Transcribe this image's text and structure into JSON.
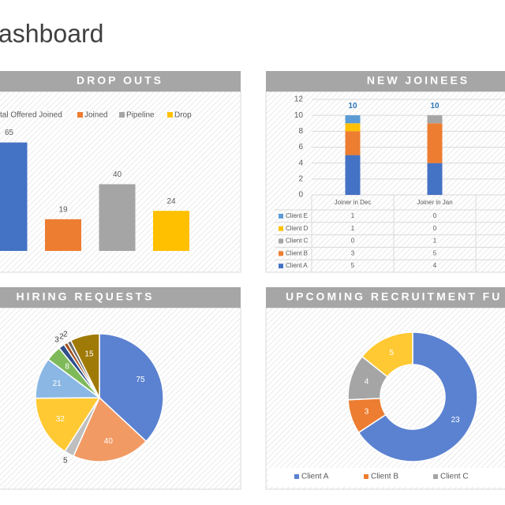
{
  "title": "ashboard",
  "chart_data": [
    {
      "type": "bar",
      "title": "DROP OUTS",
      "ylim": [
        0,
        70
      ],
      "series": [
        {
          "name": "tal Offered Joined",
          "color": "#4472c4",
          "values": [
            65
          ]
        },
        {
          "name": "Joined",
          "color": "#ed7d31",
          "values": [
            19
          ]
        },
        {
          "name": "Pipeline",
          "color": "#a5a5a5",
          "values": [
            40
          ]
        },
        {
          "name": "Drop",
          "color": "#ffc000",
          "values": [
            24
          ]
        }
      ]
    },
    {
      "type": "stacked_bar",
      "title": "NEW JOINEES",
      "ylim": [
        0,
        12
      ],
      "yticks": [
        0,
        2,
        4,
        6,
        8,
        10,
        12
      ],
      "grid": true,
      "categories": [
        "Joiner in Dec",
        "Joiner in Jan"
      ],
      "totals": [
        10,
        10
      ],
      "series": [
        {
          "name": "Client A",
          "color": "#4472c4",
          "values": [
            5,
            4
          ]
        },
        {
          "name": "Client B",
          "color": "#ed7d31",
          "values": [
            3,
            5
          ]
        },
        {
          "name": "Client C",
          "color": "#a5a5a5",
          "values": [
            0,
            1
          ]
        },
        {
          "name": "Client D",
          "color": "#ffc000",
          "values": [
            1,
            0
          ]
        },
        {
          "name": "Client E",
          "color": "#5b9bd5",
          "values": [
            1,
            0
          ]
        }
      ]
    },
    {
      "type": "pie",
      "title": "HIRING REQUESTS",
      "values": [
        75,
        40,
        5,
        32,
        21,
        8,
        3,
        2,
        2,
        15
      ],
      "colors": [
        "#5b82d1",
        "#f29a64",
        "#bfbfbf",
        "#ffc933",
        "#8ab7e3",
        "#7fba5a",
        "#2f4f8a",
        "#a4521c",
        "#6b6b6b",
        "#a07a06"
      ]
    },
    {
      "type": "donut",
      "title": "UPCOMING RECRUITMENT FU",
      "categories": [
        "Client A",
        "Client B",
        "Client C",
        null
      ],
      "values": [
        23,
        3,
        4,
        5
      ],
      "colors": [
        "#5b82d1",
        "#ed7d31",
        "#a5a5a5",
        "#ffc933"
      ]
    }
  ]
}
